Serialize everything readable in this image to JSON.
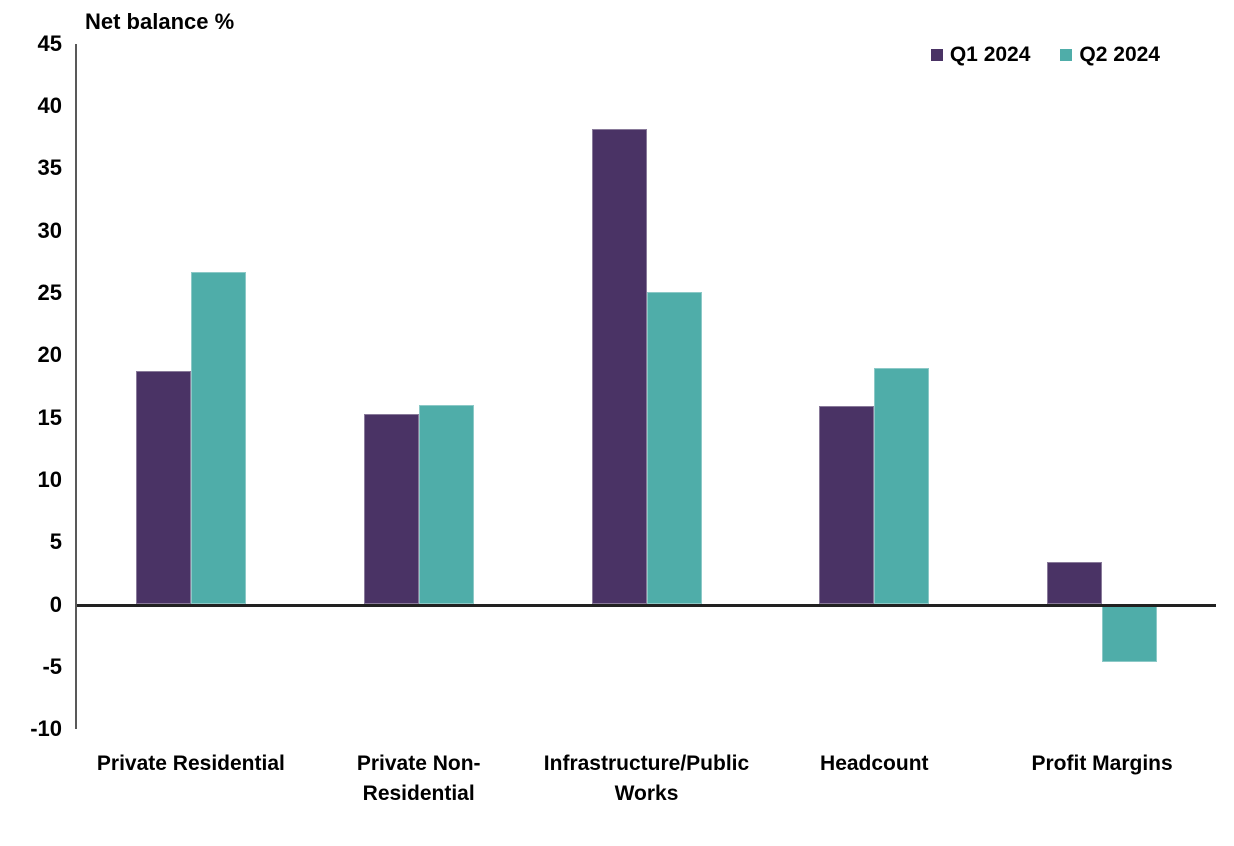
{
  "chart_data": {
    "type": "bar",
    "title": "Net balance %",
    "ylabel": "Net balance %",
    "categories": [
      "Private Residential",
      "Private Non-Residential",
      "Infrastructure/Public Works",
      "Headcount",
      "Profit Margins"
    ],
    "series": [
      {
        "name": "Q1 2024",
        "color": "#4A3365",
        "values": [
          18.7,
          15.3,
          38.2,
          15.9,
          3.4
        ]
      },
      {
        "name": "Q2 2024",
        "color": "#4FADA9",
        "values": [
          26.7,
          16.0,
          25.1,
          19.0,
          -4.6
        ]
      }
    ],
    "ylim": [
      -10,
      45
    ],
    "ytick_step": 5,
    "yticks": [
      45,
      40,
      35,
      30,
      25,
      20,
      15,
      10,
      5,
      0,
      -5,
      -10
    ],
    "grid": false,
    "legend_position": "top-right",
    "axis_color": "#595959",
    "zero_line_color": "#212121",
    "text_color": "#000000"
  }
}
